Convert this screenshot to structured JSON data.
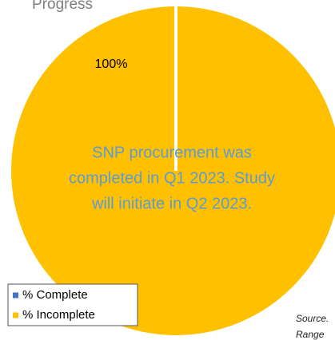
{
  "chart_data": {
    "type": "pie",
    "title": "Progress",
    "categories": [
      "% Complete",
      "% Incomplete"
    ],
    "values": [
      0,
      100
    ],
    "value_labels": [
      null,
      "100%"
    ],
    "colors": [
      "#4472c4",
      "#ffc000"
    ],
    "annotation": [
      "SNP procurement was",
      "completed in Q1 2023.  Study",
      "will  initiate in Q2 2023."
    ],
    "source": [
      "Source.",
      "Range"
    ],
    "legend": "bottom-left"
  }
}
